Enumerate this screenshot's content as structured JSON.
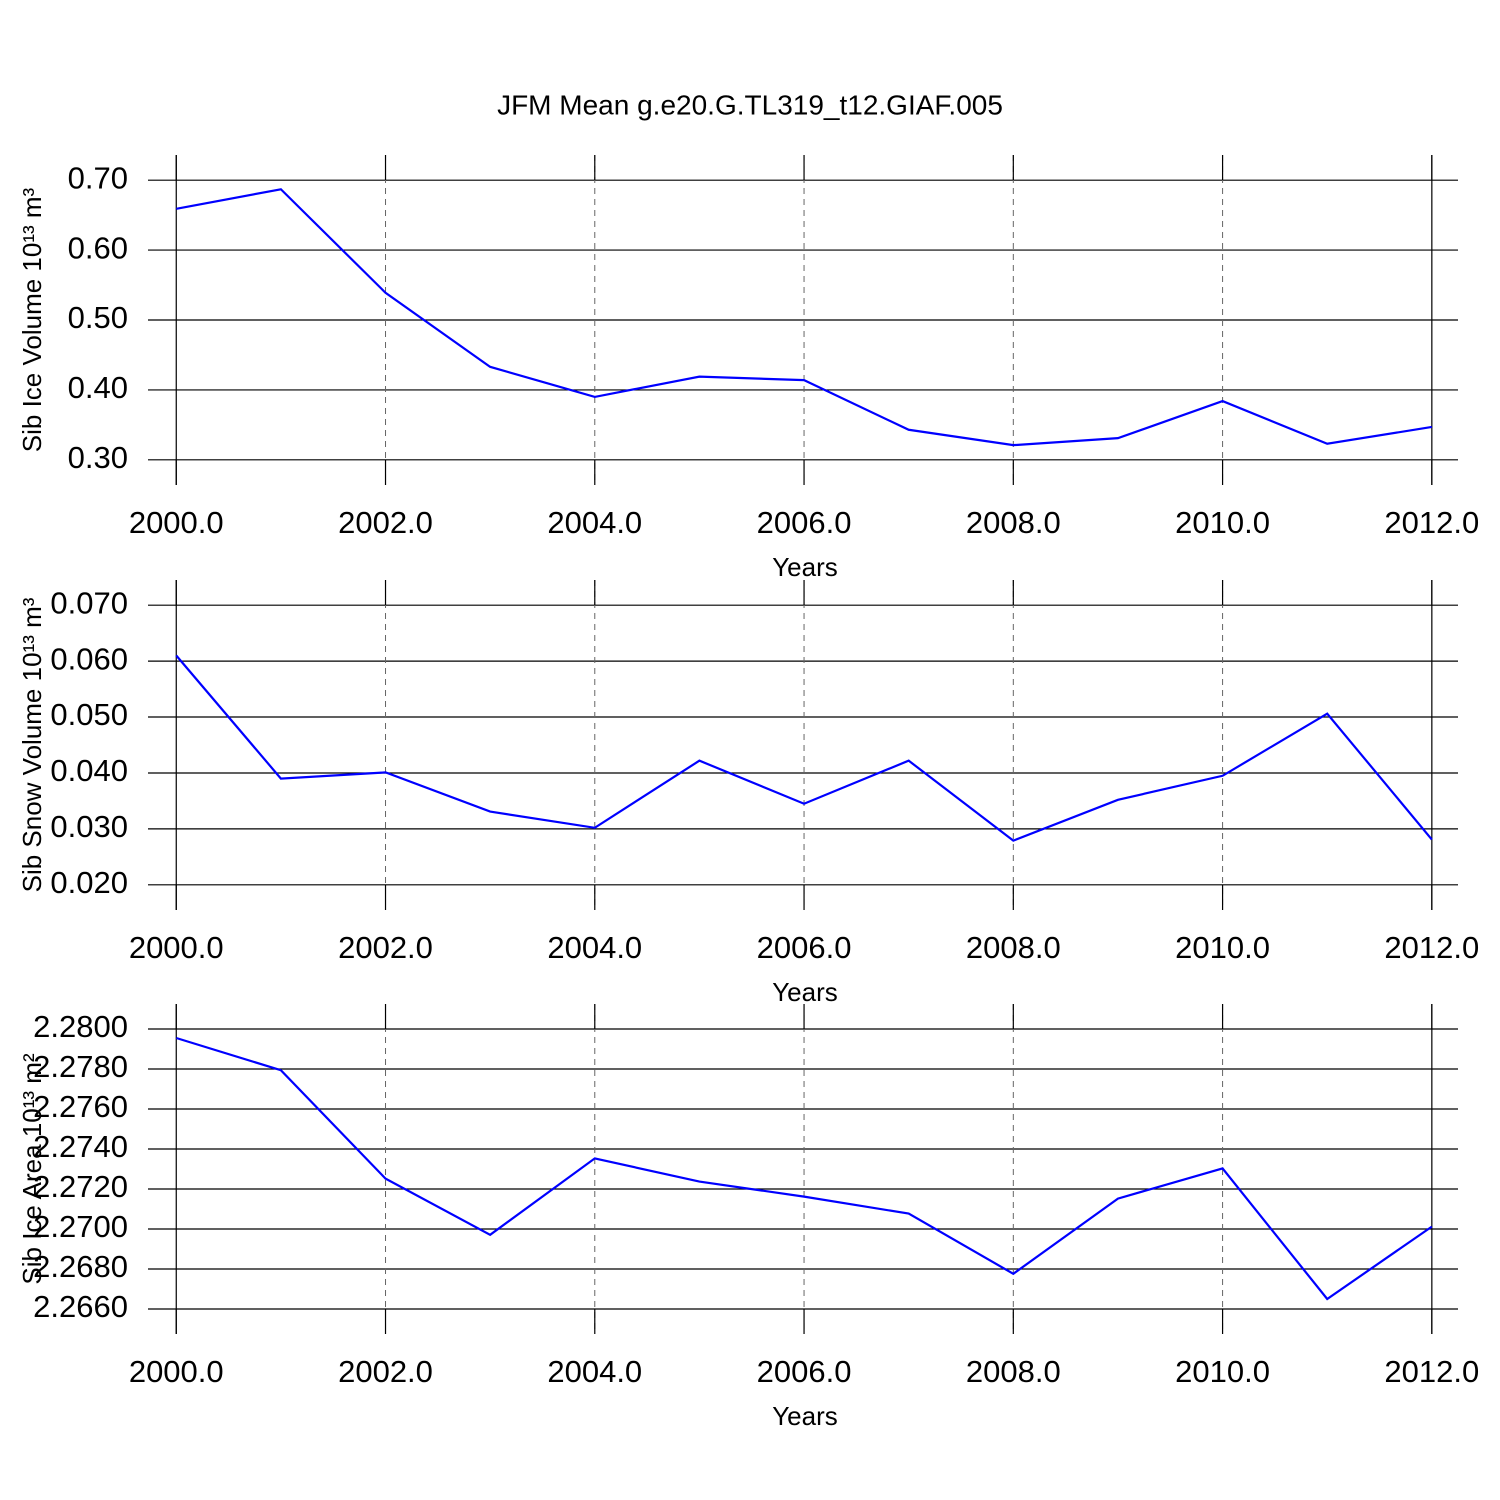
{
  "chart_data": [
    {
      "type": "line",
      "title": "JFM Mean g.e20.G.TL319_t12.GIAF.005",
      "ylabel": "Sib Ice Volume 10¹³ m³",
      "xlabel": "Years",
      "color": "#0000ff",
      "grid": true,
      "x": [
        2000,
        2001,
        2002,
        2003,
        2004,
        2005,
        2006,
        2007,
        2008,
        2009,
        2010,
        2011,
        2012
      ],
      "values": [
        0.659,
        0.687,
        0.539,
        0.433,
        0.39,
        0.419,
        0.414,
        0.343,
        0.321,
        0.331,
        0.384,
        0.323,
        0.347
      ],
      "xlim": [
        1999.73,
        2012.25
      ],
      "xticks": [
        {
          "value": 2000,
          "label": "2000.0"
        },
        {
          "value": 2002,
          "label": "2002.0"
        },
        {
          "value": 2004,
          "label": "2004.0"
        },
        {
          "value": 2006,
          "label": "2006.0"
        },
        {
          "value": 2008,
          "label": "2008.0"
        },
        {
          "value": 2010,
          "label": "2010.0"
        },
        {
          "value": 2012,
          "label": "2012.0"
        }
      ],
      "ylim": [
        0.264,
        0.736
      ],
      "yticks": [
        {
          "value": 0.3,
          "label": "0.30"
        },
        {
          "value": 0.4,
          "label": "0.40"
        },
        {
          "value": 0.5,
          "label": "0.50"
        },
        {
          "value": 0.6,
          "label": "0.60"
        },
        {
          "value": 0.7,
          "label": "0.70"
        }
      ]
    },
    {
      "type": "line",
      "ylabel": "Sib Snow Volume 10¹³ m³",
      "xlabel": "Years",
      "color": "#0000ff",
      "grid": true,
      "x": [
        2000,
        2001,
        2002,
        2003,
        2004,
        2005,
        2006,
        2007,
        2008,
        2009,
        2010,
        2011,
        2012
      ],
      "values": [
        0.061,
        0.039,
        0.0401,
        0.0331,
        0.0302,
        0.0422,
        0.0345,
        0.0422,
        0.0279,
        0.0352,
        0.0395,
        0.0506,
        0.0281
      ],
      "xlim": [
        1999.73,
        2012.25
      ],
      "xticks": [
        {
          "value": 2000,
          "label": "2000.0"
        },
        {
          "value": 2002,
          "label": "2002.0"
        },
        {
          "value": 2004,
          "label": "2004.0"
        },
        {
          "value": 2006,
          "label": "2006.0"
        },
        {
          "value": 2008,
          "label": "2008.0"
        },
        {
          "value": 2010,
          "label": "2010.0"
        },
        {
          "value": 2012,
          "label": "2012.0"
        }
      ],
      "ylim": [
        0.0155,
        0.0745
      ],
      "yticks": [
        {
          "value": 0.02,
          "label": "0.020"
        },
        {
          "value": 0.03,
          "label": "0.030"
        },
        {
          "value": 0.04,
          "label": "0.040"
        },
        {
          "value": 0.05,
          "label": "0.050"
        },
        {
          "value": 0.06,
          "label": "0.060"
        },
        {
          "value": 0.07,
          "label": "0.070"
        }
      ]
    },
    {
      "type": "line",
      "ylabel": "Sib Ice Area 10¹³ m²",
      "xlabel": "Years",
      "color": "#0000ff",
      "grid": true,
      "x": [
        2000,
        2001,
        2002,
        2003,
        2004,
        2005,
        2006,
        2007,
        2008,
        2009,
        2010,
        2011,
        2012
      ],
      "values": [
        2.27955,
        2.27794,
        2.27252,
        2.26971,
        2.27353,
        2.27237,
        2.27162,
        2.27077,
        2.26776,
        2.27152,
        2.27303,
        2.2665,
        2.27012
      ],
      "xlim": [
        1999.73,
        2012.25
      ],
      "xticks": [
        {
          "value": 2000,
          "label": "2000.0"
        },
        {
          "value": 2002,
          "label": "2002.0"
        },
        {
          "value": 2004,
          "label": "2004.0"
        },
        {
          "value": 2006,
          "label": "2006.0"
        },
        {
          "value": 2008,
          "label": "2008.0"
        },
        {
          "value": 2010,
          "label": "2010.0"
        },
        {
          "value": 2012,
          "label": "2012.0"
        }
      ],
      "ylim": [
        2.26475,
        2.28125
      ],
      "yticks": [
        {
          "value": 2.266,
          "label": "2.2660"
        },
        {
          "value": 2.268,
          "label": "2.2680"
        },
        {
          "value": 2.27,
          "label": "2.2700"
        },
        {
          "value": 2.272,
          "label": "2.2720"
        },
        {
          "value": 2.274,
          "label": "2.2740"
        },
        {
          "value": 2.276,
          "label": "2.2760"
        },
        {
          "value": 2.278,
          "label": "2.2780"
        },
        {
          "value": 2.28,
          "label": "2.2800"
        }
      ]
    }
  ]
}
